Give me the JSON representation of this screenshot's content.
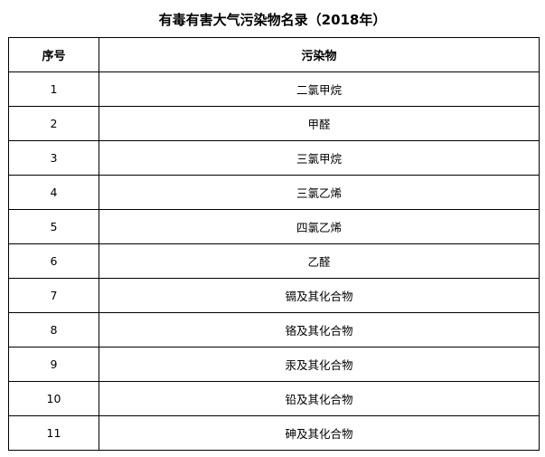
{
  "title": "有毒有害大气污染物名录（2018年）",
  "headers": [
    "序号",
    "污染物"
  ],
  "rows": [
    [
      "1",
      "二氯甲烷"
    ],
    [
      "2",
      "甲醛"
    ],
    [
      "3",
      "三氯甲烷"
    ],
    [
      "4",
      "三氯乙烯"
    ],
    [
      "5",
      "四氯乙烯"
    ],
    [
      "6",
      "乙醛"
    ],
    [
      "7",
      "镉及其化合物"
    ],
    [
      "8",
      "铬及其化合物"
    ],
    [
      "9",
      "汞及其化合物"
    ],
    [
      "10",
      "铅及其化合物"
    ],
    [
      "11",
      "砷及其化合物"
    ]
  ]
}
